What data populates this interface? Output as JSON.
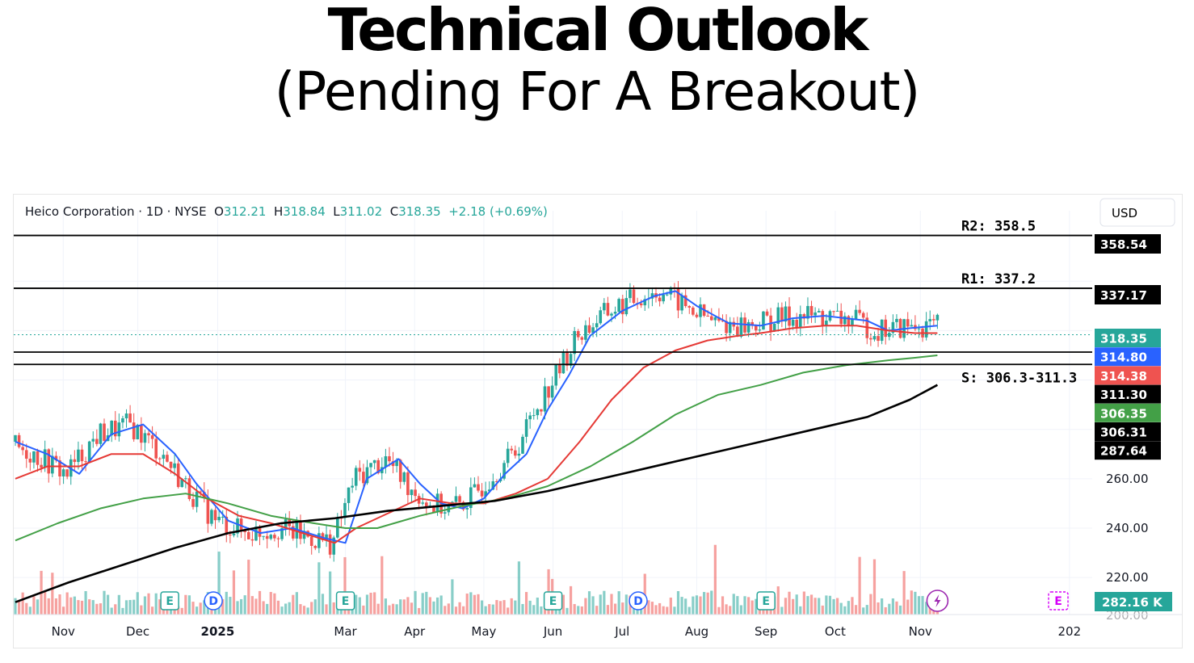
{
  "title": "Technical Outlook",
  "subtitle": "(Pending For A Breakout)",
  "header": {
    "symbol": "Heico Corporation · 1D · NYSE",
    "o_label": "O",
    "o": "312.21",
    "h_label": "H",
    "h": "318.84",
    "l_label": "L",
    "l": "311.02",
    "c_label": "C",
    "c": "318.35",
    "change": "+2.18 (+0.69%)"
  },
  "currency": "USD",
  "colors": {
    "up": "#26a69a",
    "down": "#ef5350",
    "ma_blue": "#2962ff",
    "ma_red": "#e53935",
    "ma_green": "#43a047",
    "ma_black": "#000000",
    "last_price": "#26a69a",
    "grid": "#f0f3fa"
  },
  "chart_data": {
    "type": "line",
    "subtype": "candlestick-with-moving-averages",
    "ylim": [
      205,
      362
    ],
    "yticks": [
      {
        "value": 220,
        "label": "220.00"
      },
      {
        "value": 240,
        "label": "240.00"
      },
      {
        "value": 260,
        "label": "260.00"
      }
    ],
    "bottom_tick_partial": "200.00",
    "xticks": [
      {
        "t": 0.045,
        "label": "Nov"
      },
      {
        "t": 0.115,
        "label": "Dec"
      },
      {
        "t": 0.19,
        "label": "2025",
        "bold": true
      },
      {
        "t": 0.31,
        "label": "Mar"
      },
      {
        "t": 0.375,
        "label": "Apr"
      },
      {
        "t": 0.44,
        "label": "May"
      },
      {
        "t": 0.505,
        "label": "Jun"
      },
      {
        "t": 0.57,
        "label": "Jul"
      },
      {
        "t": 0.64,
        "label": "Aug"
      },
      {
        "t": 0.705,
        "label": "Sep"
      },
      {
        "t": 0.77,
        "label": "Oct"
      },
      {
        "t": 0.85,
        "label": "Nov"
      },
      {
        "t": 0.99,
        "label": "202"
      }
    ],
    "levels": [
      {
        "name": "R2",
        "text": "R2: 358.5",
        "value": 358.54,
        "tag": "358.54"
      },
      {
        "name": "R1",
        "text": "R1: 337.2",
        "value": 337.17,
        "tag": "337.17"
      },
      {
        "name": "S-upper",
        "text": "",
        "value": 311.3,
        "tag": "311.30"
      },
      {
        "name": "S-lower",
        "text": "S: 306.3-311.3",
        "value": 306.31,
        "tag": "306.31"
      }
    ],
    "price_tags": [
      {
        "value": 318.35,
        "label": "318.35",
        "color": "#26a69a"
      },
      {
        "value": 314.8,
        "label": "314.80",
        "color": "#2962ff"
      },
      {
        "value": 314.38,
        "label": "314.38",
        "color": "#ef5350"
      },
      {
        "value": 311.3,
        "label": "311.30",
        "color": "#000000"
      },
      {
        "value": 306.35,
        "label": "306.35",
        "color": "#43a047"
      },
      {
        "value": 306.31,
        "label": "306.31",
        "color": "#000000"
      },
      {
        "value": 287.64,
        "label": "287.64",
        "color": "#000000"
      }
    ],
    "volume_tag": "282.16 K",
    "series": [
      {
        "name": "",
        "color": "#2962ff",
        "x": [
          0.0,
          0.03,
          0.06,
          0.09,
          0.12,
          0.15,
          0.17,
          0.2,
          0.23,
          0.26,
          0.29,
          0.31,
          0.33,
          0.36,
          0.38,
          0.4,
          0.42,
          0.44,
          0.46,
          0.48,
          0.5,
          0.52,
          0.54,
          0.57,
          0.6,
          0.62,
          0.64,
          0.67,
          0.7,
          0.73,
          0.76,
          0.78,
          0.8,
          0.82,
          0.84,
          0.866
        ],
        "y": [
          275,
          270,
          262,
          278,
          282,
          270,
          258,
          243,
          238,
          240,
          236,
          234,
          260,
          268,
          258,
          250,
          248,
          252,
          262,
          270,
          288,
          302,
          318,
          328,
          334,
          336,
          330,
          323,
          322,
          325,
          326,
          325,
          324,
          320,
          321,
          322
        ]
      },
      {
        "name": "",
        "color": "#e53935",
        "x": [
          0.0,
          0.03,
          0.06,
          0.09,
          0.12,
          0.15,
          0.18,
          0.21,
          0.24,
          0.27,
          0.3,
          0.32,
          0.35,
          0.38,
          0.41,
          0.44,
          0.47,
          0.5,
          0.53,
          0.56,
          0.59,
          0.62,
          0.65,
          0.68,
          0.7,
          0.73,
          0.76,
          0.79,
          0.82,
          0.845,
          0.866
        ],
        "y": [
          260,
          265,
          265,
          270,
          270,
          262,
          252,
          245,
          242,
          238,
          234,
          240,
          246,
          252,
          250,
          250,
          254,
          260,
          275,
          292,
          305,
          312,
          316,
          318,
          319,
          321,
          322,
          322,
          320,
          319,
          319
        ]
      },
      {
        "name": "",
        "color": "#43a047",
        "x": [
          0.0,
          0.04,
          0.08,
          0.12,
          0.16,
          0.2,
          0.24,
          0.28,
          0.31,
          0.34,
          0.38,
          0.42,
          0.46,
          0.5,
          0.54,
          0.58,
          0.62,
          0.66,
          0.7,
          0.74,
          0.78,
          0.82,
          0.845,
          0.866
        ],
        "y": [
          235,
          242,
          248,
          252,
          254,
          250,
          245,
          242,
          240,
          240,
          245,
          249,
          252,
          257,
          265,
          275,
          286,
          294,
          298,
          303,
          306,
          308,
          309,
          310
        ]
      },
      {
        "name": "",
        "color": "#000000",
        "x": [
          0.0,
          0.05,
          0.1,
          0.15,
          0.2,
          0.25,
          0.3,
          0.35,
          0.4,
          0.45,
          0.5,
          0.55,
          0.6,
          0.65,
          0.7,
          0.75,
          0.8,
          0.84,
          0.866
        ],
        "y": [
          210,
          218,
          225,
          232,
          238,
          242,
          244,
          247,
          249,
          251,
          255,
          260,
          265,
          270,
          275,
          280,
          285,
          292,
          298
        ]
      }
    ]
  }
}
